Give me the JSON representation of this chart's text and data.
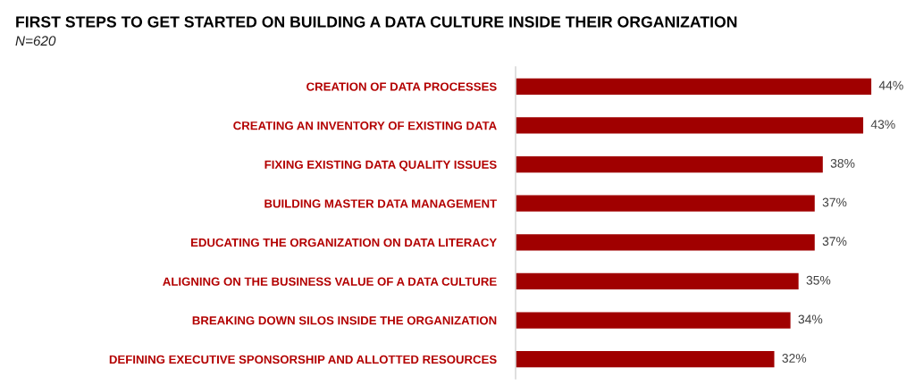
{
  "chart_data": {
    "type": "bar",
    "orientation": "horizontal",
    "title": "FIRST STEPS TO GET STARTED ON BUILDING A DATA CULTURE INSIDE THEIR ORGANIZATION",
    "subtitle": "N=620",
    "categories": [
      "CREATION OF DATA PROCESSES",
      "CREATING AN INVENTORY OF EXISTING DATA",
      "FIXING EXISTING DATA QUALITY ISSUES",
      "BUILDING MASTER DATA MANAGEMENT",
      "EDUCATING THE ORGANIZATION ON DATA LITERACY",
      "ALIGNING ON THE BUSINESS VALUE OF A DATA CULTURE",
      "BREAKING DOWN SILOS INSIDE THE ORGANIZATION",
      "DEFINING EXECUTIVE SPONSORSHIP AND ALLOTTED RESOURCES"
    ],
    "values": [
      44,
      43,
      38,
      37,
      37,
      35,
      34,
      32
    ],
    "value_labels": [
      "44%",
      "43%",
      "38%",
      "37%",
      "37%",
      "35%",
      "34%",
      "32%"
    ],
    "color": "#a00000",
    "tick_labels": "y"
  }
}
